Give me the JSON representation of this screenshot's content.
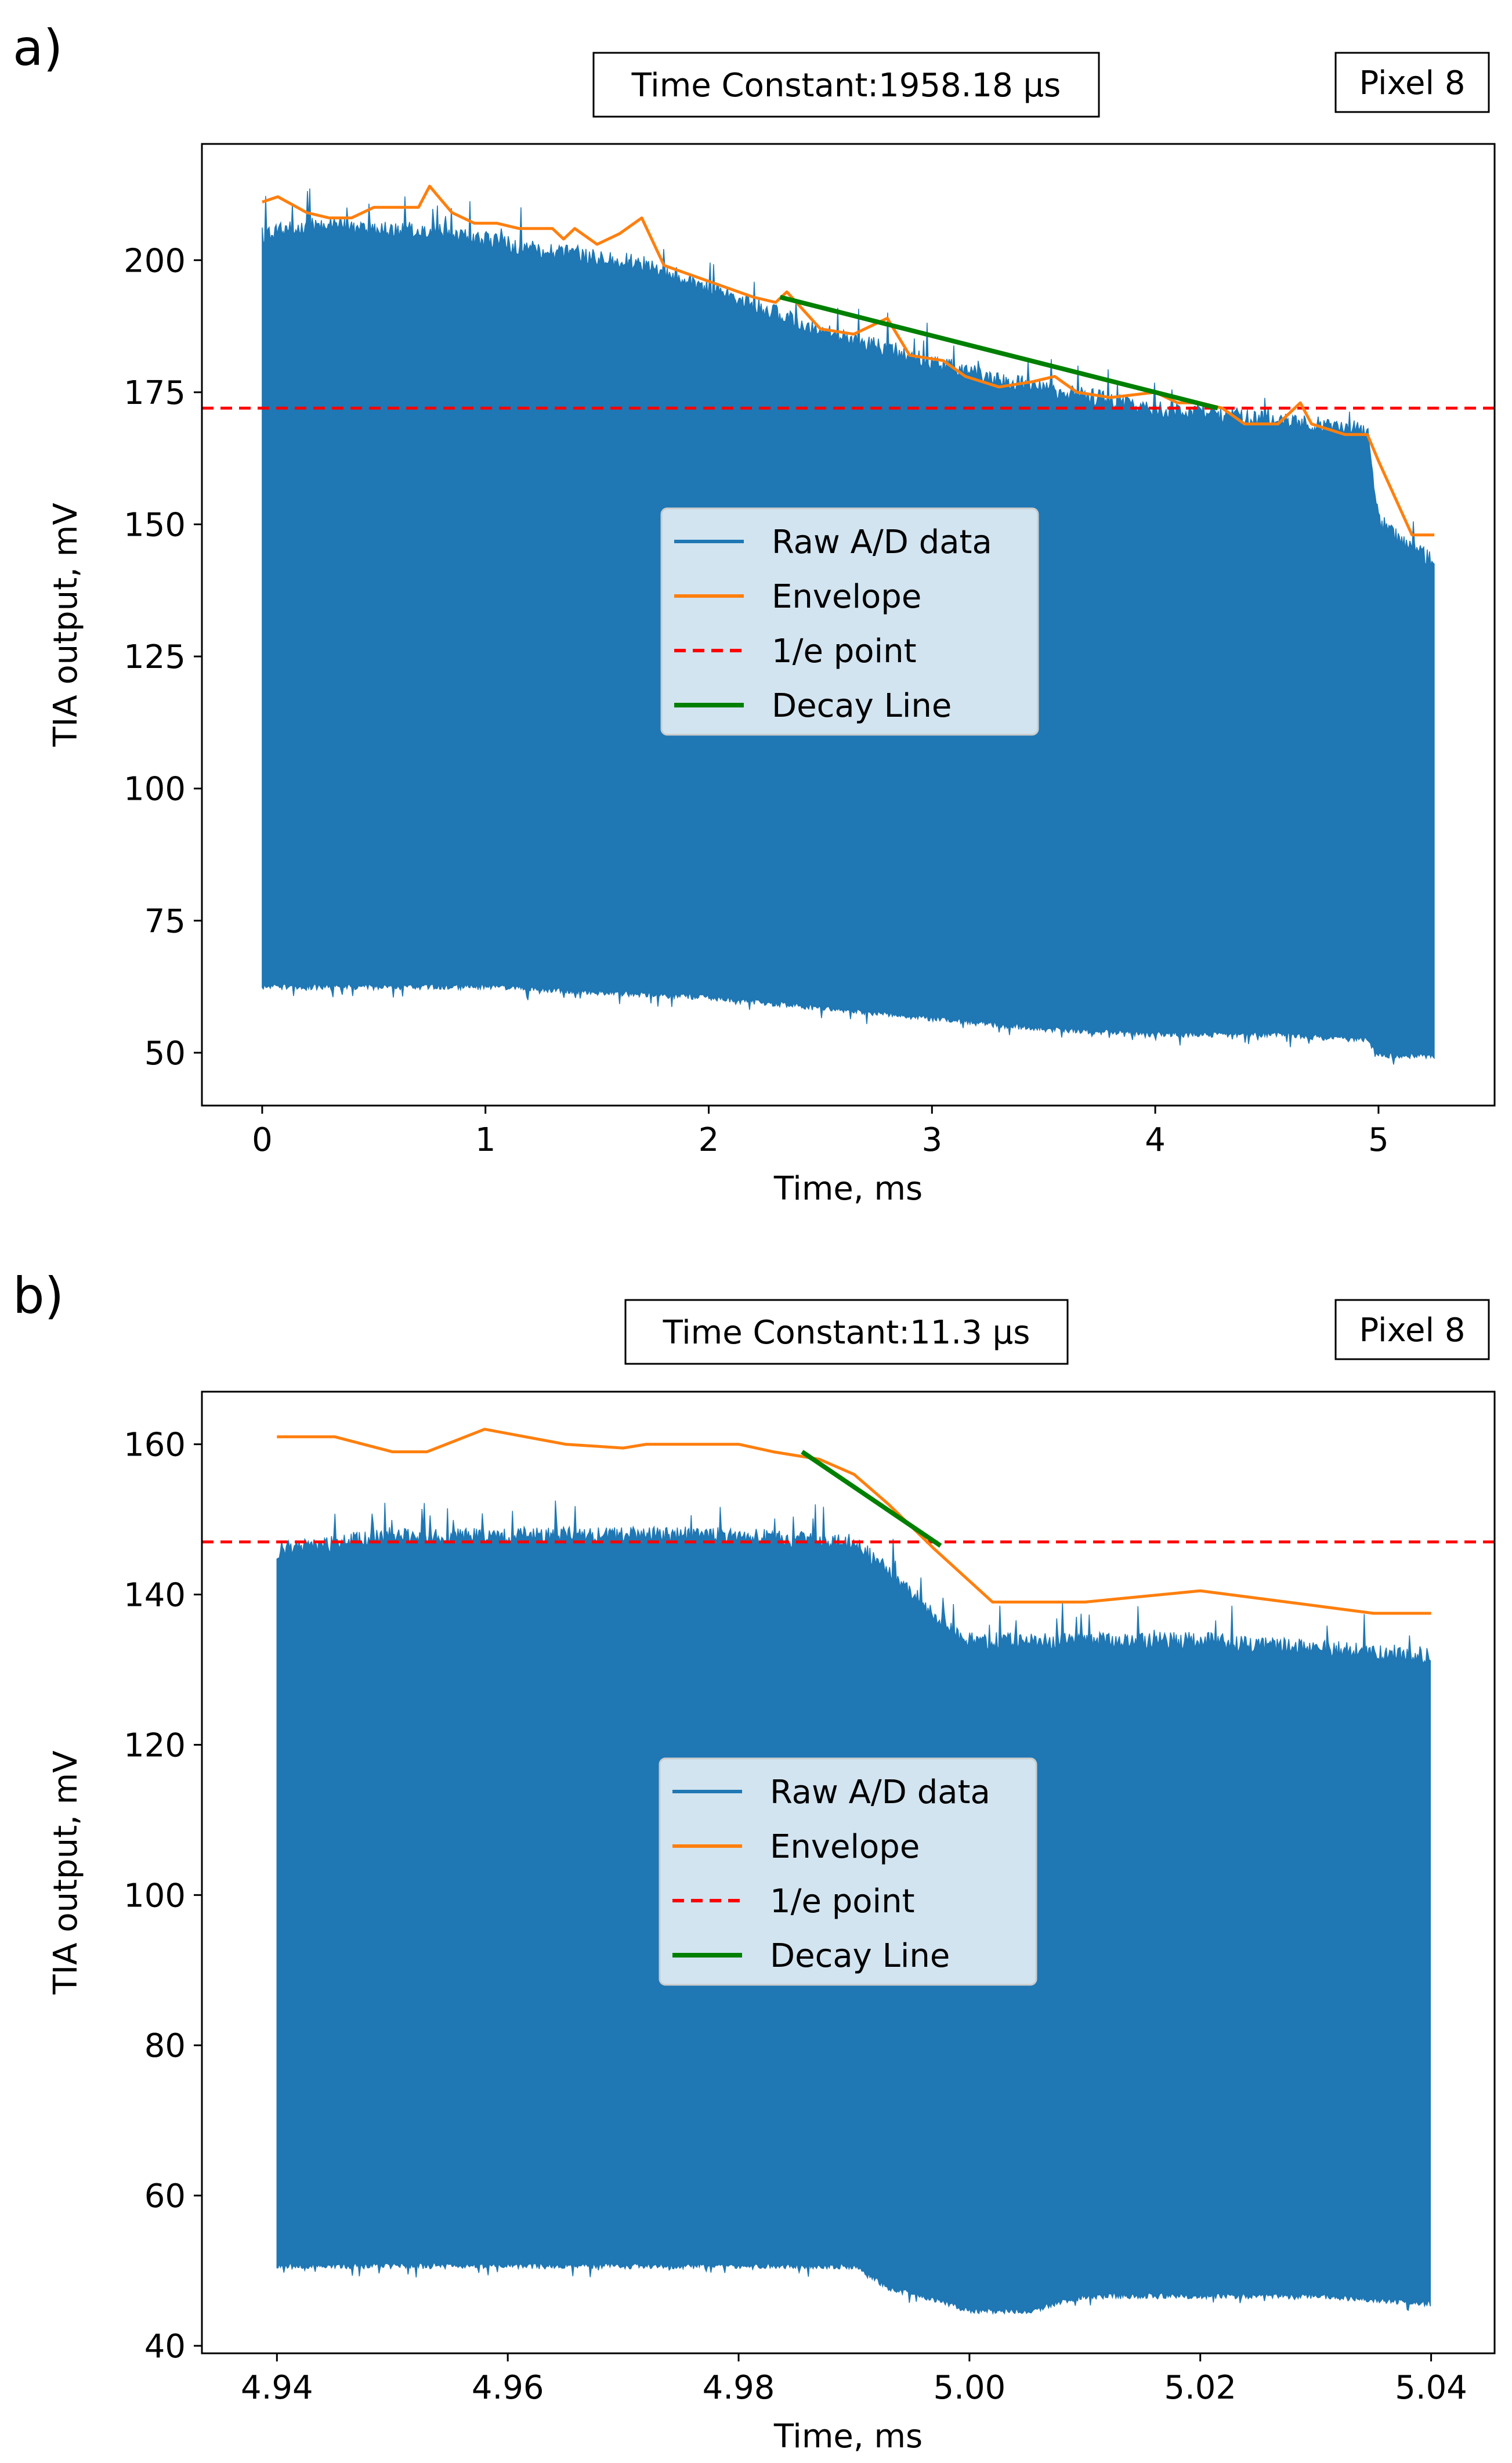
{
  "chart_data": [
    {
      "panel_label": "a)",
      "type": "line",
      "title_box": "Time Constant:1958.18 μs",
      "pixel_box": "Pixel 8",
      "xlabel": "Time, ms",
      "ylabel": "TIA output, mV",
      "xlim": [
        -0.27,
        5.52
      ],
      "ylim": [
        40,
        222
      ],
      "xticks": [
        0,
        1,
        2,
        3,
        4,
        5
      ],
      "xtick_labels": [
        "0",
        "1",
        "2",
        "3",
        "4",
        "5"
      ],
      "yticks": [
        50,
        75,
        100,
        125,
        150,
        175,
        200
      ],
      "ytick_labels": [
        "50",
        "75",
        "100",
        "125",
        "150",
        "175",
        "200"
      ],
      "raw": {
        "name": "Raw A/D data",
        "color": "#1f77b4",
        "x_range": [
          0,
          5.25
        ],
        "upper_envelope": [
          [
            0,
            205
          ],
          [
            0.25,
            207
          ],
          [
            0.5,
            206
          ],
          [
            0.75,
            206
          ],
          [
            1.0,
            204
          ],
          [
            1.25,
            202
          ],
          [
            1.5,
            201
          ],
          [
            1.75,
            199
          ],
          [
            2.0,
            195
          ],
          [
            2.25,
            191
          ],
          [
            2.5,
            187
          ],
          [
            2.75,
            184
          ],
          [
            3.0,
            181
          ],
          [
            3.25,
            178
          ],
          [
            3.5,
            176
          ],
          [
            3.75,
            174
          ],
          [
            4.0,
            172
          ],
          [
            4.25,
            171
          ],
          [
            4.5,
            170
          ],
          [
            4.75,
            169
          ],
          [
            4.95,
            168
          ],
          [
            5.0,
            151
          ],
          [
            5.1,
            147
          ],
          [
            5.25,
            143
          ]
        ],
        "lower_envelope": [
          [
            0,
            63
          ],
          [
            0.5,
            63
          ],
          [
            1.0,
            63
          ],
          [
            1.5,
            62
          ],
          [
            2.0,
            61
          ],
          [
            2.5,
            59
          ],
          [
            3.0,
            57
          ],
          [
            3.5,
            55
          ],
          [
            4.0,
            54
          ],
          [
            4.5,
            54
          ],
          [
            4.95,
            53
          ],
          [
            5.0,
            50
          ],
          [
            5.25,
            50
          ]
        ]
      },
      "envelope": {
        "name": "Envelope",
        "color": "#ff7f0e",
        "points": [
          [
            0,
            211
          ],
          [
            0.07,
            212
          ],
          [
            0.2,
            209
          ],
          [
            0.3,
            208
          ],
          [
            0.4,
            208
          ],
          [
            0.5,
            210
          ],
          [
            0.6,
            210
          ],
          [
            0.7,
            210
          ],
          [
            0.75,
            214
          ],
          [
            0.85,
            209
          ],
          [
            0.95,
            207
          ],
          [
            1.05,
            207
          ],
          [
            1.15,
            206
          ],
          [
            1.3,
            206
          ],
          [
            1.35,
            204
          ],
          [
            1.4,
            206
          ],
          [
            1.5,
            203
          ],
          [
            1.6,
            205
          ],
          [
            1.7,
            208
          ],
          [
            1.8,
            199
          ],
          [
            2.0,
            196
          ],
          [
            2.2,
            193
          ],
          [
            2.3,
            192
          ],
          [
            2.35,
            194
          ],
          [
            2.5,
            187
          ],
          [
            2.65,
            186
          ],
          [
            2.8,
            189
          ],
          [
            2.9,
            182
          ],
          [
            3.05,
            181
          ],
          [
            3.15,
            178
          ],
          [
            3.3,
            176
          ],
          [
            3.45,
            177
          ],
          [
            3.55,
            178
          ],
          [
            3.65,
            175
          ],
          [
            3.8,
            174
          ],
          [
            4.0,
            175
          ],
          [
            4.1,
            173
          ],
          [
            4.2,
            173
          ],
          [
            4.3,
            172
          ],
          [
            4.4,
            169
          ],
          [
            4.55,
            169
          ],
          [
            4.65,
            173
          ],
          [
            4.7,
            169
          ],
          [
            4.85,
            167
          ],
          [
            4.95,
            167
          ],
          [
            5.0,
            162
          ],
          [
            5.15,
            148
          ],
          [
            5.25,
            148
          ]
        ]
      },
      "one_over_e": {
        "name": "1/e point",
        "color": "#ff0000",
        "y": 172
      },
      "decay_line": {
        "name": "Decay Line",
        "color": "#008000",
        "x": [
          2.32,
          4.28
        ],
        "y": [
          193,
          172
        ]
      },
      "legend": {
        "location": "center",
        "entries": [
          "Raw A/D data",
          "Envelope",
          "1/e point",
          "Decay Line"
        ]
      }
    },
    {
      "panel_label": "b)",
      "type": "line",
      "title_box": "Time Constant:11.3 μs",
      "pixel_box": "Pixel 8",
      "xlabel": "Time, ms",
      "ylabel": "TIA output, mV",
      "xlim": [
        4.9335,
        5.0455
      ],
      "ylim": [
        39,
        167
      ],
      "xticks": [
        4.94,
        4.96,
        4.98,
        5.0,
        5.02,
        5.04
      ],
      "xtick_labels": [
        "4.94",
        "4.96",
        "4.98",
        "5.00",
        "5.02",
        "5.04"
      ],
      "yticks": [
        40,
        60,
        80,
        100,
        120,
        140,
        160
      ],
      "ytick_labels": [
        "40",
        "60",
        "80",
        "100",
        "120",
        "140",
        "160"
      ],
      "raw": {
        "name": "Raw A/D data",
        "color": "#1f77b4",
        "x_range": [
          4.94,
          5.04
        ],
        "upper_envelope": [
          [
            4.94,
            146
          ],
          [
            4.95,
            148
          ],
          [
            4.96,
            148
          ],
          [
            4.97,
            148
          ],
          [
            4.98,
            148
          ],
          [
            4.99,
            147
          ],
          [
            4.994,
            142
          ],
          [
            4.998,
            136
          ],
          [
            5.0,
            134
          ],
          [
            5.01,
            134
          ],
          [
            5.02,
            134
          ],
          [
            5.03,
            133
          ],
          [
            5.04,
            132
          ]
        ],
        "lower_envelope": [
          [
            4.94,
            51
          ],
          [
            4.96,
            51
          ],
          [
            4.98,
            51
          ],
          [
            4.99,
            51
          ],
          [
            4.993,
            48
          ],
          [
            4.996,
            47
          ],
          [
            5.0,
            45
          ],
          [
            5.005,
            45
          ],
          [
            5.01,
            47
          ],
          [
            5.02,
            47
          ],
          [
            5.03,
            47
          ],
          [
            5.04,
            46
          ]
        ]
      },
      "envelope": {
        "name": "Envelope",
        "color": "#ff7f0e",
        "points": [
          [
            4.94,
            161
          ],
          [
            4.945,
            161
          ],
          [
            4.95,
            159
          ],
          [
            4.953,
            159
          ],
          [
            4.958,
            162
          ],
          [
            4.965,
            160
          ],
          [
            4.97,
            159.5
          ],
          [
            4.972,
            160
          ],
          [
            4.98,
            160
          ],
          [
            4.983,
            159
          ],
          [
            4.987,
            158
          ],
          [
            4.99,
            156
          ],
          [
            4.993,
            152
          ],
          [
            4.997,
            146
          ],
          [
            5.002,
            139
          ],
          [
            5.01,
            139
          ],
          [
            5.02,
            140.5
          ],
          [
            5.03,
            138.5
          ],
          [
            5.035,
            137.5
          ],
          [
            5.04,
            137.5
          ]
        ]
      },
      "one_over_e": {
        "name": "1/e point",
        "color": "#ff0000",
        "y": 147
      },
      "decay_line": {
        "name": "Decay Line",
        "color": "#008000",
        "x": [
          4.9855,
          4.9975
        ],
        "y": [
          159,
          146.5
        ]
      },
      "legend": {
        "location": "center",
        "entries": [
          "Raw A/D data",
          "Envelope",
          "1/e point",
          "Decay Line"
        ]
      }
    }
  ]
}
